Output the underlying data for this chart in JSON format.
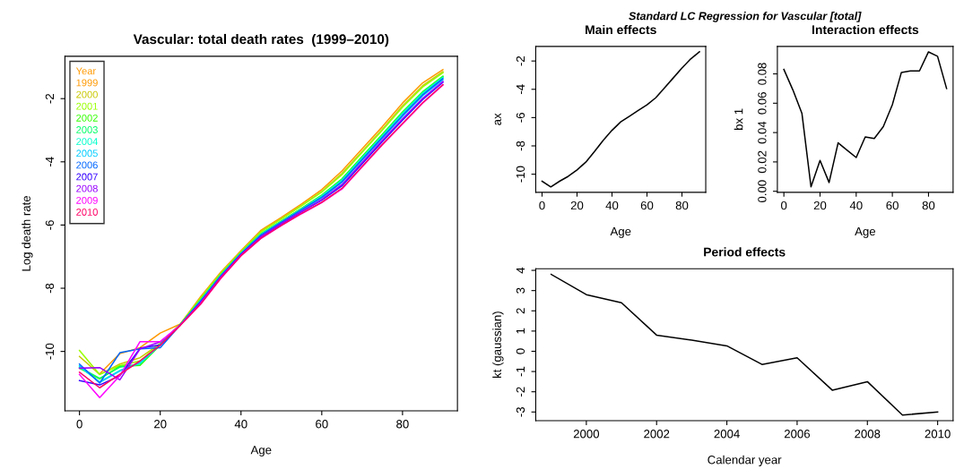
{
  "chart_data": [
    {
      "type": "line",
      "title": "Vascular: total death rates  (1999–2010)",
      "xlabel": "Age",
      "ylabel": "Log death rate",
      "legend_title": "Year",
      "legend": "top left",
      "x": [
        0,
        5,
        10,
        15,
        20,
        25,
        30,
        35,
        40,
        45,
        50,
        55,
        60,
        65,
        70,
        75,
        80,
        85,
        90
      ],
      "xlim": [
        -3.6,
        93.6
      ],
      "xticks": [
        0,
        20,
        40,
        60,
        80
      ],
      "ylim": [
        -11.88,
        -0.66
      ],
      "yticks": [
        -10,
        -8,
        -6,
        -4,
        -2
      ],
      "series": [
        {
          "name": "1999",
          "color": "#ff9900",
          "values": [
            null,
            -10.71,
            -10.07,
            -9.88,
            -9.42,
            -9.13,
            -8.27,
            -7.49,
            -6.81,
            -6.16,
            -5.76,
            -5.33,
            -4.88,
            -4.29,
            -3.59,
            -2.89,
            -2.14,
            -1.5,
            -1.08
          ]
        },
        {
          "name": "2000",
          "color": "#c8c800",
          "values": [
            -10.16,
            -10.73,
            -10.4,
            -10.2,
            -9.75,
            -9.13,
            -8.31,
            -7.52,
            -6.84,
            -6.2,
            -5.8,
            -5.38,
            -4.94,
            -4.37,
            -3.67,
            -2.97,
            -2.23,
            -1.59,
            -1.15
          ]
        },
        {
          "name": "2001",
          "color": "#99ff00",
          "values": [
            -9.97,
            -10.73,
            -10.45,
            -10.3,
            -9.75,
            -9.14,
            -8.32,
            -7.53,
            -6.85,
            -6.21,
            -5.81,
            -5.39,
            -4.96,
            -4.41,
            -3.7,
            -3.0,
            -2.27,
            -1.63,
            -1.18
          ]
        },
        {
          "name": "2002",
          "color": "#33ff00",
          "values": [
            -10.53,
            -10.87,
            -10.47,
            -10.44,
            -9.8,
            -9.15,
            -8.37,
            -7.58,
            -6.88,
            -6.27,
            -5.87,
            -5.47,
            -5.05,
            -4.54,
            -3.83,
            -3.13,
            -2.42,
            -1.78,
            -1.29
          ]
        },
        {
          "name": "2003",
          "color": "#00ff66",
          "values": [
            -10.5,
            -10.85,
            -10.5,
            -10.4,
            -9.78,
            -9.15,
            -8.38,
            -7.58,
            -6.89,
            -6.28,
            -5.88,
            -5.48,
            -5.07,
            -4.56,
            -3.86,
            -3.16,
            -2.45,
            -1.8,
            -1.31
          ]
        },
        {
          "name": "2004",
          "color": "#00ffcc",
          "values": [
            -10.49,
            -10.96,
            -10.6,
            -10.38,
            -9.78,
            -9.15,
            -8.39,
            -7.59,
            -6.89,
            -6.29,
            -5.89,
            -5.49,
            -5.08,
            -4.58,
            -3.88,
            -3.18,
            -2.47,
            -1.83,
            -1.33
          ]
        },
        {
          "name": "2005",
          "color": "#00ccff",
          "values": [
            -10.45,
            -10.98,
            -10.62,
            -10.35,
            -9.8,
            -9.15,
            -8.42,
            -7.62,
            -6.92,
            -6.32,
            -5.92,
            -5.53,
            -5.14,
            -4.65,
            -3.95,
            -3.25,
            -2.56,
            -1.91,
            -1.4
          ]
        },
        {
          "name": "2006",
          "color": "#0066ff",
          "values": [
            -10.4,
            -11.0,
            -10.04,
            -9.92,
            -9.88,
            -9.15,
            -8.41,
            -7.61,
            -6.91,
            -6.31,
            -5.91,
            -5.51,
            -5.12,
            -4.63,
            -3.93,
            -3.23,
            -2.53,
            -1.88,
            -1.37
          ]
        },
        {
          "name": "2007",
          "color": "#3300ff",
          "values": [
            -10.92,
            -11.06,
            -10.77,
            -9.9,
            -9.8,
            -9.16,
            -8.46,
            -7.65,
            -6.94,
            -6.37,
            -5.97,
            -5.58,
            -5.21,
            -4.76,
            -4.06,
            -3.36,
            -2.68,
            -2.03,
            -1.48
          ]
        },
        {
          "name": "2008",
          "color": "#9900ff",
          "values": [
            -10.53,
            -10.51,
            -10.9,
            -9.92,
            -9.7,
            -9.16,
            -8.45,
            -7.64,
            -6.94,
            -6.36,
            -5.95,
            -5.57,
            -5.19,
            -4.72,
            -4.02,
            -3.32,
            -2.64,
            -1.99,
            -1.46
          ]
        },
        {
          "name": "2009",
          "color": "#ff00ff",
          "values": [
            -10.73,
            -11.46,
            -10.77,
            -9.69,
            -9.69,
            -9.17,
            -8.5,
            -7.69,
            -6.97,
            -6.42,
            -6.01,
            -5.64,
            -5.29,
            -4.86,
            -4.16,
            -3.46,
            -2.8,
            -2.14,
            -1.57
          ]
        },
        {
          "name": "2010",
          "color": "#ff0066",
          "values": [
            -10.66,
            -11.15,
            -10.72,
            -10.3,
            -9.8,
            -9.17,
            -8.5,
            -7.68,
            -6.97,
            -6.41,
            -6.01,
            -5.63,
            -5.28,
            -4.84,
            -4.15,
            -3.45,
            -2.79,
            -2.13,
            -1.56
          ]
        }
      ]
    },
    {
      "type": "line",
      "title": "Main effects",
      "xlabel": "Age",
      "ylabel": "ax",
      "annotations": [
        "Standard LC Regression for Vascular [total]"
      ],
      "x": [
        0,
        5,
        10,
        15,
        20,
        25,
        30,
        35,
        40,
        45,
        50,
        55,
        60,
        65,
        70,
        75,
        80,
        85,
        90
      ],
      "xlim": [
        -3.6,
        93.6
      ],
      "xticks": [
        0,
        20,
        40,
        60,
        80
      ],
      "ylim": [
        -11.28,
        -0.97
      ],
      "yticks": [
        -10,
        -8,
        -6,
        -4,
        -2
      ],
      "series": [
        {
          "color": "#000000",
          "values": [
            -10.5,
            -10.9,
            -10.5,
            -10.15,
            -9.7,
            -9.15,
            -8.4,
            -7.6,
            -6.9,
            -6.3,
            -5.9,
            -5.5,
            -5.1,
            -4.6,
            -3.9,
            -3.2,
            -2.5,
            -1.85,
            -1.35
          ]
        }
      ]
    },
    {
      "type": "line",
      "title": "Interaction effects",
      "xlabel": "Age",
      "ylabel": "bx 1",
      "x": [
        0,
        5,
        10,
        15,
        20,
        25,
        30,
        35,
        40,
        45,
        50,
        55,
        60,
        65,
        70,
        75,
        80,
        85,
        90
      ],
      "xlim": [
        -3.6,
        93.6
      ],
      "xticks": [
        0,
        20,
        40,
        60,
        80
      ],
      "ylim": [
        -0.0007,
        0.0987
      ],
      "yticks": [
        {
          "value": 0,
          "label": "0.00"
        },
        {
          "value": 0.02,
          "label": "0.02"
        },
        {
          "value": 0.04,
          "label": "0.04"
        },
        {
          "value": 0.06,
          "label": "0.06"
        },
        {
          "value": 0.08,
          "label": "0.08"
        }
      ],
      "series": [
        {
          "color": "#000000",
          "values": [
            0.083,
            0.069,
            0.053,
            0.003,
            0.021,
            0.006,
            0.033,
            0.028,
            0.023,
            0.037,
            0.036,
            0.044,
            0.059,
            0.081,
            0.082,
            0.082,
            0.095,
            0.092,
            0.07
          ]
        }
      ]
    },
    {
      "type": "line",
      "title": "Period effects",
      "xlabel": "Calendar year",
      "ylabel": "kt (gaussian)",
      "x": [
        1999,
        2000,
        2001,
        2002,
        2003,
        2004,
        2005,
        2006,
        2007,
        2008,
        2009,
        2010
      ],
      "xlim": [
        1998.56,
        2010.44
      ],
      "xticks": [
        2000,
        2002,
        2004,
        2006,
        2008,
        2010
      ],
      "ylim": [
        -3.43,
        4.08
      ],
      "yticks": [
        -3,
        -2,
        -1,
        0,
        1,
        2,
        3,
        4
      ],
      "series": [
        {
          "color": "#000000",
          "values": [
            3.8,
            2.8,
            2.4,
            0.8,
            0.55,
            0.27,
            -0.65,
            -0.32,
            -1.92,
            -1.5,
            -3.15,
            -3.0
          ]
        }
      ]
    }
  ]
}
